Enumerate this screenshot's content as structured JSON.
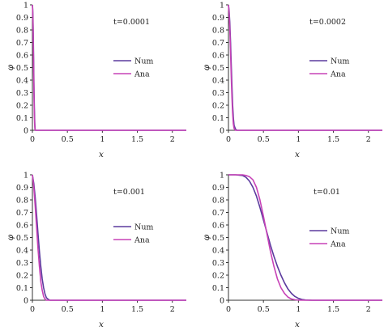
{
  "chart_data": [
    {
      "type": "line",
      "annotation": "t=0.0001",
      "xlabel": "x",
      "ylabel": "φ",
      "xlim": [
        0,
        2.2
      ],
      "ylim": [
        0,
        1
      ],
      "xticks": [
        "0",
        "0.5",
        "1",
        "1.5",
        "2"
      ],
      "yticks": [
        "0",
        "0.1",
        "0.2",
        "0.3",
        "0.4",
        "0.5",
        "0.6",
        "0.7",
        "0.8",
        "0.9",
        "1"
      ],
      "grid": false,
      "legend_position": "right",
      "series": [
        {
          "name": "Num",
          "color": "#5b3a9e",
          "x": [
            0,
            0.004,
            0.008,
            0.012,
            0.016,
            0.02,
            0.024,
            0.028,
            0.032,
            0.036,
            0.04,
            2.2
          ],
          "y": [
            1,
            0.97,
            0.9,
            0.78,
            0.62,
            0.45,
            0.3,
            0.18,
            0.09,
            0.03,
            0,
            0
          ]
        },
        {
          "name": "Ana",
          "color": "#c742b7",
          "x": [
            0,
            0.004,
            0.008,
            0.012,
            0.016,
            0.02,
            0.024,
            0.028,
            0.032,
            0.036,
            0.04,
            2.2
          ],
          "y": [
            1,
            0.95,
            0.86,
            0.72,
            0.55,
            0.38,
            0.23,
            0.12,
            0.05,
            0.01,
            0,
            0
          ]
        }
      ]
    },
    {
      "type": "line",
      "annotation": "t=0.0002",
      "xlabel": "x",
      "ylabel": "φ",
      "xlim": [
        0,
        2.2
      ],
      "ylim": [
        0,
        1
      ],
      "xticks": [
        "0",
        "0.5",
        "1",
        "1.5",
        "2"
      ],
      "yticks": [
        "0",
        "0.1",
        "0.2",
        "0.3",
        "0.4",
        "0.5",
        "0.6",
        "0.7",
        "0.8",
        "0.9",
        "1"
      ],
      "grid": false,
      "legend_position": "right",
      "series": [
        {
          "name": "Num",
          "color": "#5b3a9e",
          "x": [
            0,
            0.01,
            0.02,
            0.03,
            0.04,
            0.05,
            0.06,
            0.07,
            0.08,
            0.1,
            0.12,
            2.2
          ],
          "y": [
            1,
            0.95,
            0.85,
            0.7,
            0.52,
            0.35,
            0.2,
            0.1,
            0.04,
            0.01,
            0,
            0
          ]
        },
        {
          "name": "Ana",
          "color": "#c742b7",
          "x": [
            0,
            0.01,
            0.02,
            0.03,
            0.04,
            0.05,
            0.06,
            0.07,
            0.08,
            0.1,
            0.12,
            2.2
          ],
          "y": [
            1,
            0.93,
            0.8,
            0.62,
            0.43,
            0.26,
            0.13,
            0.05,
            0.015,
            0,
            0,
            0
          ]
        }
      ]
    },
    {
      "type": "line",
      "annotation": "t=0.001",
      "xlabel": "x",
      "ylabel": "φ",
      "xlim": [
        0,
        2.2
      ],
      "ylim": [
        0,
        1
      ],
      "xticks": [
        "0",
        "0.5",
        "1",
        "1.5",
        "2"
      ],
      "yticks": [
        "0",
        "0.1",
        "0.2",
        "0.3",
        "0.4",
        "0.5",
        "0.6",
        "0.7",
        "0.8",
        "0.9",
        "1"
      ],
      "grid": false,
      "legend_position": "right",
      "series": [
        {
          "name": "Num",
          "color": "#5b3a9e",
          "x": [
            0,
            0.02,
            0.04,
            0.06,
            0.08,
            0.1,
            0.12,
            0.14,
            0.16,
            0.18,
            0.2,
            0.22,
            0.25,
            2.2
          ],
          "y": [
            1,
            0.93,
            0.82,
            0.68,
            0.53,
            0.39,
            0.27,
            0.17,
            0.1,
            0.05,
            0.02,
            0.01,
            0,
            0
          ]
        },
        {
          "name": "Ana",
          "color": "#c742b7",
          "x": [
            0,
            0.02,
            0.04,
            0.06,
            0.08,
            0.1,
            0.12,
            0.14,
            0.16,
            0.18,
            0.2,
            2.2
          ],
          "y": [
            1,
            0.9,
            0.75,
            0.58,
            0.41,
            0.27,
            0.15,
            0.08,
            0.03,
            0.01,
            0,
            0
          ]
        }
      ]
    },
    {
      "type": "line",
      "annotation": "t=0.01",
      "xlabel": "x",
      "ylabel": "φ",
      "xlim": [
        0,
        2.2
      ],
      "ylim": [
        0,
        1
      ],
      "xticks": [
        "0",
        "0.5",
        "1",
        "1.5",
        "2"
      ],
      "yticks": [
        "0",
        "0.1",
        "0.2",
        "0.3",
        "0.4",
        "0.5",
        "0.6",
        "0.7",
        "0.8",
        "0.9",
        "1"
      ],
      "grid": false,
      "legend_position": "right",
      "series": [
        {
          "name": "Num",
          "color": "#5b3a9e",
          "x": [
            0,
            0.1,
            0.2,
            0.25,
            0.3,
            0.35,
            0.4,
            0.45,
            0.5,
            0.55,
            0.6,
            0.65,
            0.7,
            0.75,
            0.8,
            0.85,
            0.9,
            0.95,
            1.0,
            1.05,
            1.1,
            1.2,
            2.2
          ],
          "y": [
            1,
            1,
            0.995,
            0.98,
            0.95,
            0.9,
            0.83,
            0.74,
            0.64,
            0.54,
            0.44,
            0.35,
            0.27,
            0.2,
            0.14,
            0.09,
            0.055,
            0.03,
            0.015,
            0.006,
            0.002,
            0,
            0
          ]
        },
        {
          "name": "Ana",
          "color": "#c742b7",
          "x": [
            0,
            0.1,
            0.2,
            0.25,
            0.3,
            0.35,
            0.4,
            0.45,
            0.5,
            0.55,
            0.6,
            0.65,
            0.7,
            0.75,
            0.8,
            0.85,
            0.9,
            0.95,
            1.0,
            1.1,
            2.2
          ],
          "y": [
            1,
            1,
            1,
            0.995,
            0.985,
            0.96,
            0.9,
            0.8,
            0.67,
            0.53,
            0.39,
            0.27,
            0.17,
            0.1,
            0.055,
            0.025,
            0.01,
            0.004,
            0.001,
            0,
            0
          ]
        }
      ]
    }
  ]
}
